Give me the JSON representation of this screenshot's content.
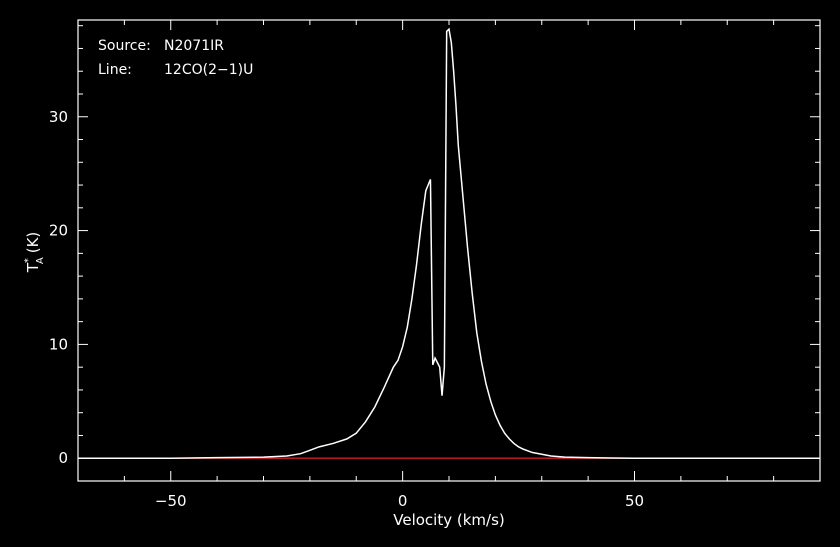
{
  "chart_data": {
    "type": "line",
    "annotations": [
      {
        "key": "Source:",
        "value": "N2071IR"
      },
      {
        "key": "Line:",
        "value": "12CO(2−1)U"
      }
    ],
    "xlabel": "Velocity (km/s)",
    "ylabel": "T",
    "ylabel_sup": "*",
    "ylabel_sub": "A",
    "ylabel_unit": "(K)",
    "xlim": [
      -70,
      90
    ],
    "ylim": [
      -2,
      38.5
    ],
    "xticks": [
      {
        "value": -50,
        "label": "−50"
      },
      {
        "value": 0,
        "label": "0"
      },
      {
        "value": 50,
        "label": "50"
      }
    ],
    "yticks": [
      {
        "value": 0,
        "label": "0"
      },
      {
        "value": 10,
        "label": "10"
      },
      {
        "value": 20,
        "label": "20"
      },
      {
        "value": 30,
        "label": "30"
      }
    ],
    "colors": {
      "spectrum": "#ffffff",
      "baseline": "#cc2020",
      "frame": "#ffffff",
      "background": "#000000"
    },
    "baseline": 0,
    "series": [
      {
        "x": [
          -70,
          -60,
          -50,
          -40,
          -30,
          -25,
          -22,
          -20,
          -18,
          -15,
          -12,
          -10,
          -8,
          -6,
          -4,
          -2,
          -1,
          0,
          1,
          2,
          3,
          4,
          5,
          6,
          6.5,
          7,
          7.5,
          8,
          8.5,
          9,
          9.5,
          10,
          10.5,
          11,
          11.5,
          12,
          13,
          14,
          15,
          16,
          17,
          18,
          19,
          20,
          21,
          22,
          23,
          24,
          25,
          26,
          28,
          30,
          32,
          35,
          40,
          45,
          50,
          60,
          70,
          80,
          90
        ],
        "y": [
          0,
          0,
          0,
          0.05,
          0.1,
          0.2,
          0.4,
          0.7,
          1.0,
          1.3,
          1.7,
          2.2,
          3.2,
          4.5,
          6.2,
          8.0,
          8.6,
          9.8,
          11.5,
          14.0,
          17.0,
          20.5,
          23.5,
          24.5,
          8.2,
          8.8,
          8.4,
          8.0,
          5.5,
          8.0,
          37.5,
          37.7,
          36.5,
          34.0,
          31.0,
          27.5,
          23.0,
          18.5,
          14.5,
          11.0,
          8.5,
          6.5,
          5.0,
          3.8,
          2.9,
          2.2,
          1.7,
          1.3,
          1.0,
          0.8,
          0.5,
          0.35,
          0.2,
          0.1,
          0.05,
          0.02,
          0,
          0,
          0,
          0,
          0
        ]
      }
    ]
  }
}
